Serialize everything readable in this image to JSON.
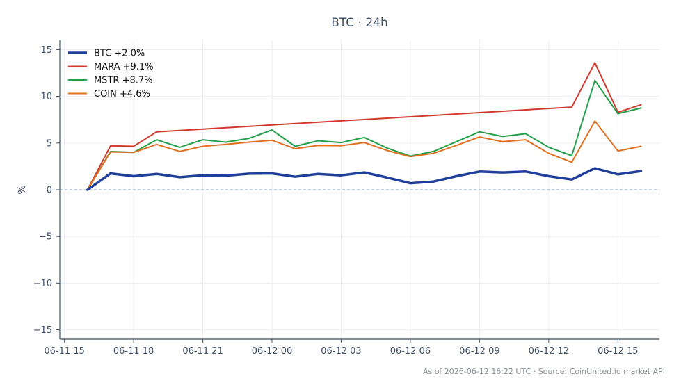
{
  "chart_data": {
    "type": "line",
    "title": "BTC · 24h",
    "xlabel": "",
    "ylabel": "%",
    "ylim": [
      -16,
      16
    ],
    "yticks": [
      15,
      10,
      5,
      0,
      -5,
      -10,
      -15
    ],
    "ytick_labels": [
      "15",
      "10",
      "5",
      "0",
      "−5",
      "−10",
      "−15"
    ],
    "x_range_hours": [
      -0.2,
      25.8
    ],
    "xticks": [
      {
        "h": 0,
        "label": "06-11 15"
      },
      {
        "h": 3,
        "label": "06-11 18"
      },
      {
        "h": 6,
        "label": "06-11 21"
      },
      {
        "h": 9,
        "label": "06-12 00"
      },
      {
        "h": 12,
        "label": "06-12 03"
      },
      {
        "h": 15,
        "label": "06-12 06"
      },
      {
        "h": 18,
        "label": "06-12 09"
      },
      {
        "h": 21,
        "label": "06-12 12"
      },
      {
        "h": 24,
        "label": "06-12 15"
      }
    ],
    "x_hours": [
      1,
      2,
      3,
      4,
      5,
      6,
      7,
      8,
      9,
      10,
      11,
      12,
      13,
      14,
      15,
      16,
      17,
      18,
      19,
      20,
      21,
      22,
      23,
      24,
      25
    ],
    "x_note": "hours since 06-11 15:00",
    "grid": true,
    "legend": "top-left",
    "zero_line": true,
    "series": [
      {
        "name": "BTC +2.0%",
        "color": "#1f3f9a",
        "width": 3.5,
        "values": [
          0,
          1.75,
          1.45,
          1.7,
          1.35,
          1.55,
          1.5,
          1.72,
          1.75,
          1.4,
          1.7,
          1.55,
          1.85,
          1.3,
          0.7,
          0.88,
          1.45,
          1.95,
          1.85,
          1.95,
          1.45,
          1.1,
          2.3,
          1.65,
          2.0
        ]
      },
      {
        "name": "MARA +9.1%",
        "color": "#d03a2e",
        "width": 2,
        "values": [
          0,
          4.7,
          4.65,
          6.2,
          null,
          null,
          null,
          null,
          null,
          null,
          null,
          null,
          null,
          null,
          null,
          null,
          null,
          null,
          null,
          null,
          null,
          8.85,
          13.6,
          8.3,
          9.1
        ]
      },
      {
        "name": "MSTR +8.7%",
        "color": "#24a04b",
        "width": 2,
        "values": [
          0,
          4.1,
          4.0,
          5.35,
          4.55,
          5.35,
          5.1,
          5.5,
          6.4,
          4.65,
          5.25,
          5.05,
          5.6,
          4.45,
          3.6,
          4.1,
          5.15,
          6.2,
          5.7,
          6.0,
          4.55,
          3.65,
          11.7,
          8.15,
          8.75
        ]
      },
      {
        "name": "COIN +4.6%",
        "color": "#e07020",
        "width": 2,
        "values": [
          0,
          4.05,
          4.0,
          4.85,
          4.1,
          4.65,
          4.85,
          5.1,
          5.3,
          4.4,
          4.75,
          4.72,
          5.05,
          4.2,
          3.55,
          3.9,
          4.75,
          5.65,
          5.15,
          5.35,
          3.9,
          2.95,
          7.35,
          4.15,
          4.65
        ]
      }
    ],
    "footer": "As of 2026-06-12 16:22 UTC · Source: CoinUnited.io market API"
  }
}
